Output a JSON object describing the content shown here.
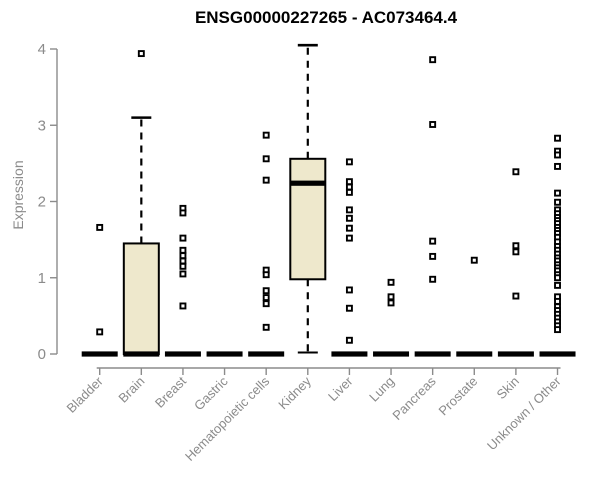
{
  "chart_data": {
    "type": "boxplot",
    "title": "ENSG00000227265 - AC073464.4",
    "ylabel": "Expression",
    "xlabel": "",
    "ylim": [
      0,
      4
    ],
    "yticks": [
      0,
      1,
      2,
      3,
      4
    ],
    "grid": false,
    "legend": false,
    "colors": {
      "box_fill": "#EEE8CC",
      "box_stroke": "#000000",
      "median": "#000000",
      "whisker": "#000000",
      "outlier_stroke": "#000000",
      "outlier_fill": "#ffffff",
      "axis": "#8b8b8b",
      "title": "#000000",
      "background": "#ffffff"
    },
    "categories": [
      "Bladder",
      "Brain",
      "Breast",
      "Gastric",
      "Hematopoietic cells",
      "Kidney",
      "Liver",
      "Lung",
      "Pancreas",
      "Prostate",
      "Skin",
      "Unknown / Other"
    ],
    "boxes": [
      {
        "category": "Bladder",
        "min": 0,
        "q1": 0,
        "median": 0,
        "q3": 0,
        "max": 0,
        "outliers": [
          1.66,
          0.29
        ]
      },
      {
        "category": "Brain",
        "min": 0,
        "q1": 0,
        "median": 0,
        "q3": 1.45,
        "max": 3.1,
        "outliers": [
          3.94
        ]
      },
      {
        "category": "Breast",
        "min": 0,
        "q1": 0,
        "median": 0,
        "q3": 0,
        "max": 0,
        "outliers": [
          1.91,
          1.85,
          1.52,
          1.36,
          1.29,
          1.22,
          1.15,
          1.05,
          0.63
        ]
      },
      {
        "category": "Gastric",
        "min": 0,
        "q1": 0,
        "median": 0,
        "q3": 0,
        "max": 0,
        "outliers": []
      },
      {
        "category": "Hematopoietic cells",
        "min": 0,
        "q1": 0,
        "median": 0,
        "q3": 0,
        "max": 0,
        "outliers": [
          2.87,
          2.56,
          2.28,
          1.1,
          1.04,
          0.83,
          0.74,
          0.66,
          0.35
        ]
      },
      {
        "category": "Kidney",
        "min": 0.02,
        "q1": 0.98,
        "median": 2.24,
        "q3": 2.56,
        "max": 4.05,
        "outliers": []
      },
      {
        "category": "Liver",
        "min": 0,
        "q1": 0,
        "median": 0,
        "q3": 0,
        "max": 0,
        "outliers": [
          2.52,
          2.26,
          2.19,
          2.12,
          1.89,
          1.78,
          1.65,
          1.52,
          0.84,
          0.6,
          0.18
        ]
      },
      {
        "category": "Lung",
        "min": 0,
        "q1": 0,
        "median": 0,
        "q3": 0,
        "max": 0,
        "outliers": [
          0.94,
          0.75,
          0.67
        ]
      },
      {
        "category": "Pancreas",
        "min": 0,
        "q1": 0,
        "median": 0,
        "q3": 0,
        "max": 0,
        "outliers": [
          3.86,
          3.01,
          1.48,
          1.28,
          0.98
        ]
      },
      {
        "category": "Prostate",
        "min": 0,
        "q1": 0,
        "median": 0,
        "q3": 0,
        "max": 0,
        "outliers": [
          1.23
        ]
      },
      {
        "category": "Skin",
        "min": 0,
        "q1": 0,
        "median": 0,
        "q3": 0,
        "max": 0,
        "outliers": [
          2.39,
          1.42,
          1.34,
          0.76
        ]
      },
      {
        "category": "Unknown / Other",
        "min": 0,
        "q1": 0,
        "median": 0,
        "q3": 0,
        "max": 0,
        "outliers": [
          2.83,
          2.66,
          2.61,
          2.46,
          2.11,
          1.99,
          1.89,
          1.84,
          1.79,
          1.75,
          1.71,
          1.66,
          1.62,
          1.58,
          1.53,
          1.47,
          1.41,
          1.36,
          1.31,
          1.26,
          1.22,
          1.17,
          1.13,
          1.09,
          1.04,
          1.0,
          0.9,
          0.75,
          0.69,
          0.62,
          0.57,
          0.52,
          0.47,
          0.42,
          0.37,
          0.32
        ]
      }
    ]
  }
}
